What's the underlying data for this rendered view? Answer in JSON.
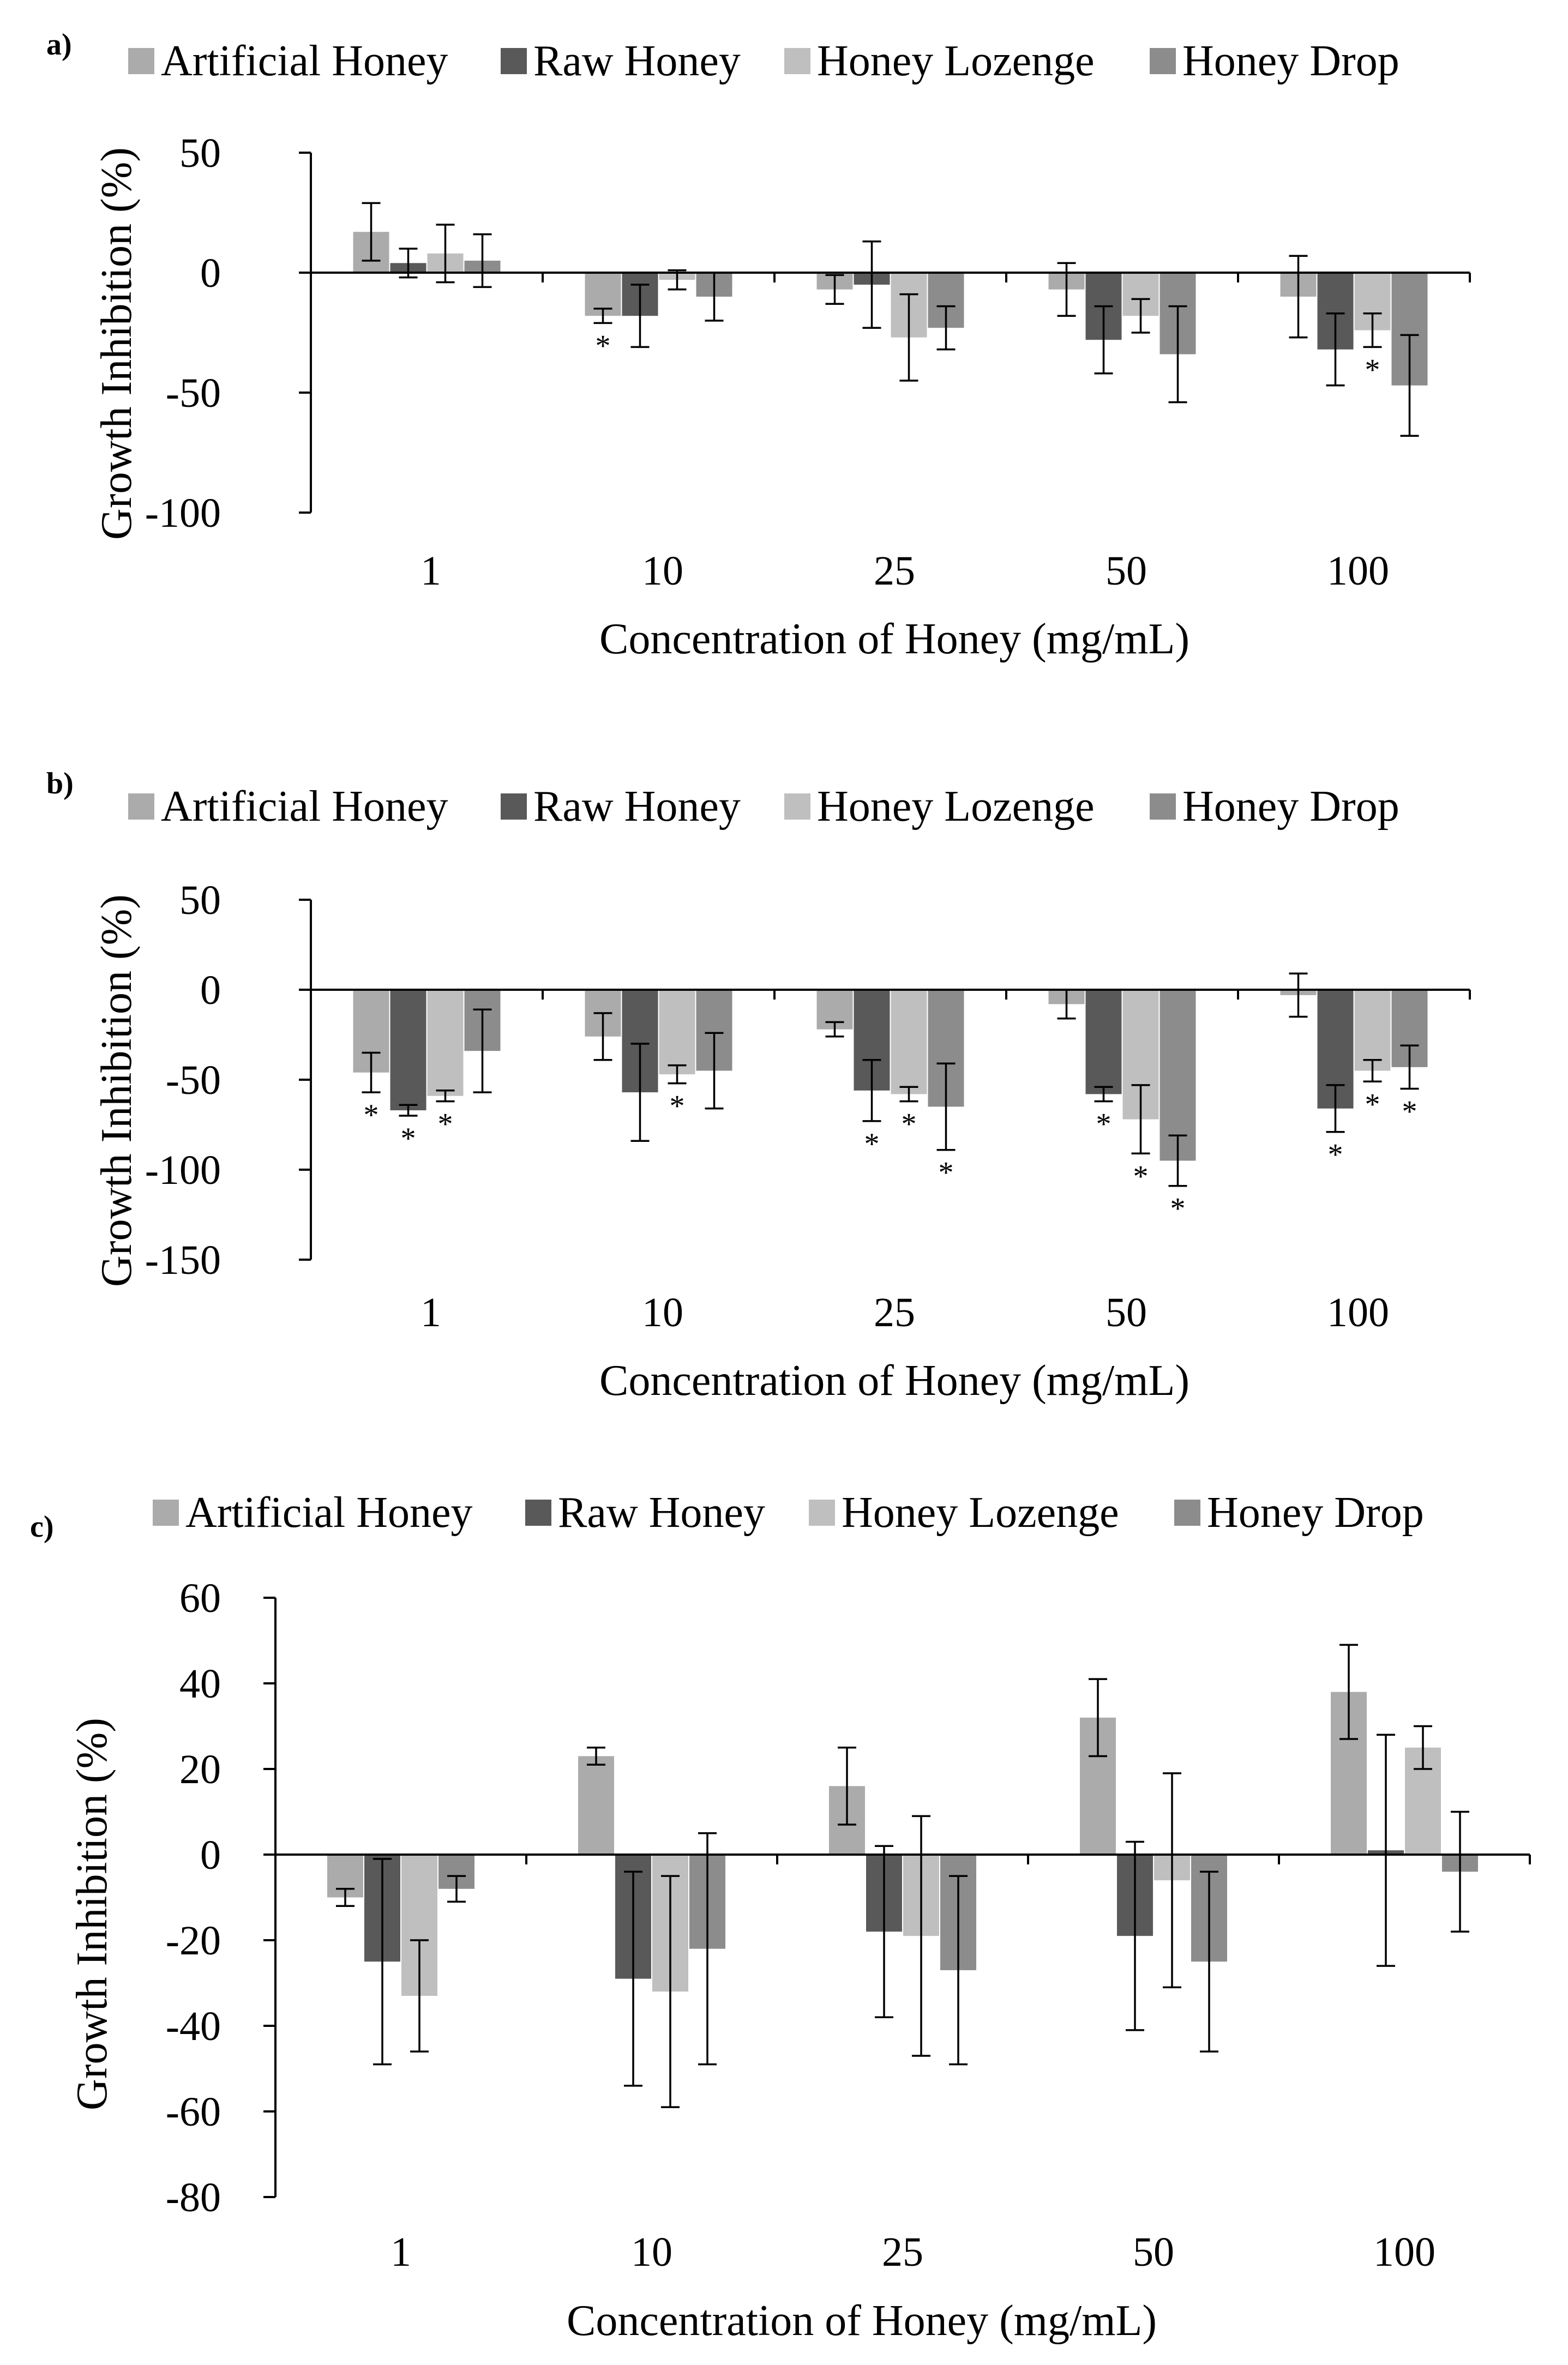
{
  "colors": {
    "Artificial Honey": "#ababab",
    "Raw Honey": "#595959",
    "Honey Lozenge": "#bfbfbf",
    "Honey Drop": "#8c8c8c",
    "axis": "#000000"
  },
  "chart_data": [
    {
      "type": "bar",
      "panel": "a)",
      "categories": [
        "1",
        "10",
        "25",
        "50",
        "100"
      ],
      "xlabel": "Concentration of Honey (mg/mL)",
      "ylabel": "Growth Inhibition (%)",
      "ylim": [
        -100,
        50
      ],
      "yticks": [
        50,
        0,
        -50,
        -100
      ],
      "legend_position": "top",
      "series": [
        {
          "name": "Artificial Honey",
          "values": [
            17,
            -18,
            -7,
            -7,
            -10
          ],
          "errors": [
            12,
            3,
            6,
            11,
            17
          ],
          "significant": [
            false,
            true,
            false,
            false,
            false
          ]
        },
        {
          "name": "Raw Honey",
          "values": [
            4,
            -18,
            -5,
            -28,
            -32
          ],
          "errors": [
            6,
            13,
            18,
            14,
            15
          ],
          "significant": [
            false,
            false,
            false,
            false,
            false
          ]
        },
        {
          "name": "Honey Lozenge",
          "values": [
            8,
            -3,
            -27,
            -18,
            -24
          ],
          "errors": [
            12,
            4,
            18,
            7,
            7
          ],
          "significant": [
            false,
            false,
            false,
            false,
            true
          ]
        },
        {
          "name": "Honey Drop",
          "values": [
            5,
            -10,
            -23,
            -34,
            -47
          ],
          "errors": [
            11,
            10,
            9,
            20,
            21
          ],
          "significant": [
            false,
            false,
            false,
            false,
            false
          ]
        }
      ]
    },
    {
      "type": "bar",
      "panel": "b)",
      "categories": [
        "1",
        "10",
        "25",
        "50",
        "100"
      ],
      "xlabel": "Concentration of Honey (mg/mL)",
      "ylabel": "Growth Inhibition (%)",
      "ylim": [
        -150,
        50
      ],
      "yticks": [
        50,
        0,
        -50,
        -100,
        -150
      ],
      "legend_position": "top",
      "series": [
        {
          "name": "Artificial Honey",
          "values": [
            -46,
            -26,
            -22,
            -8,
            -3
          ],
          "errors": [
            11,
            13,
            4,
            8,
            12
          ],
          "significant": [
            true,
            false,
            false,
            false,
            false
          ]
        },
        {
          "name": "Raw Honey",
          "values": [
            -67,
            -57,
            -56,
            -58,
            -66
          ],
          "errors": [
            3,
            27,
            17,
            4,
            13
          ],
          "significant": [
            true,
            false,
            true,
            true,
            true
          ]
        },
        {
          "name": "Honey Lozenge",
          "values": [
            -59,
            -47,
            -58,
            -72,
            -45
          ],
          "errors": [
            3,
            5,
            4,
            19,
            6
          ],
          "significant": [
            true,
            true,
            true,
            true,
            true
          ]
        },
        {
          "name": "Honey Drop",
          "values": [
            -34,
            -45,
            -65,
            -95,
            -43
          ],
          "errors": [
            23,
            21,
            24,
            14,
            12
          ],
          "significant": [
            false,
            false,
            true,
            true,
            true
          ]
        }
      ]
    },
    {
      "type": "bar",
      "panel": "c)",
      "categories": [
        "1",
        "10",
        "25",
        "50",
        "100"
      ],
      "xlabel": "Concentration of Honey (mg/mL)",
      "ylabel": "Growth Inhibition (%)",
      "ylim": [
        -80,
        60
      ],
      "yticks": [
        60,
        40,
        20,
        0,
        -20,
        -40,
        -60,
        -80
      ],
      "legend_position": "top",
      "series": [
        {
          "name": "Artificial Honey",
          "values": [
            -10,
            23,
            16,
            32,
            38
          ],
          "errors": [
            2,
            2,
            9,
            9,
            11
          ],
          "significant": [
            false,
            false,
            false,
            false,
            false
          ]
        },
        {
          "name": "Raw Honey",
          "values": [
            -25,
            -29,
            -18,
            -19,
            1
          ],
          "errors": [
            24,
            25,
            20,
            22,
            27
          ],
          "significant": [
            false,
            false,
            false,
            false,
            false
          ]
        },
        {
          "name": "Honey Lozenge",
          "values": [
            -33,
            -32,
            -19,
            -6,
            25
          ],
          "errors": [
            13,
            27,
            28,
            25,
            5
          ],
          "significant": [
            false,
            false,
            false,
            false,
            false
          ]
        },
        {
          "name": "Honey Drop",
          "values": [
            -8,
            -22,
            -27,
            -25,
            -4
          ],
          "errors": [
            3,
            27,
            22,
            21,
            14
          ],
          "significant": [
            false,
            false,
            false,
            false,
            false
          ]
        }
      ]
    }
  ]
}
